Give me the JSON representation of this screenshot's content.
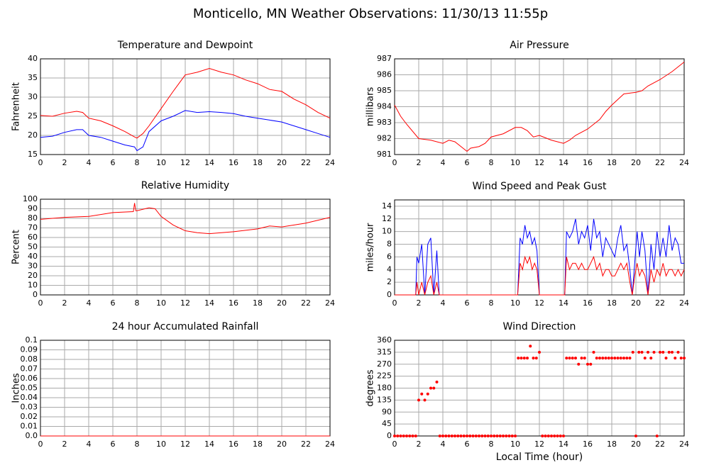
{
  "title": "Monticello, MN Weather Observations: 11/30/13 11:55p",
  "chart_data": [
    {
      "type": "line",
      "title": "Temperature and Dewpoint",
      "ylabel": "Fahrenheit",
      "grid": true,
      "xlim": [
        0,
        24
      ],
      "xticks": [
        0,
        2,
        4,
        6,
        8,
        10,
        12,
        14,
        16,
        18,
        20,
        22,
        24
      ],
      "ylim": [
        15,
        40
      ],
      "yticks": [
        15,
        20,
        25,
        30,
        35,
        40
      ],
      "x": [
        0,
        1,
        2,
        3,
        3.5,
        4,
        5,
        6,
        7,
        7.8,
        8,
        8.5,
        9,
        10,
        11,
        12,
        13,
        14,
        15,
        16,
        17,
        18,
        19,
        20,
        21,
        22,
        23,
        24
      ],
      "series": [
        {
          "color": "#ff0000",
          "values": [
            25.2,
            25,
            25.8,
            26.3,
            26,
            24.5,
            23.8,
            22.5,
            21,
            19.6,
            19.3,
            20.5,
            22.5,
            27,
            31.5,
            35.8,
            36.5,
            37.5,
            36.5,
            35.8,
            34.5,
            33.5,
            32,
            31.5,
            29.5,
            28,
            26,
            24.5
          ]
        },
        {
          "color": "#0000ff",
          "values": [
            19.5,
            19.8,
            20.8,
            21.5,
            21.5,
            20,
            19.5,
            18.5,
            17.5,
            17,
            16,
            17,
            21,
            23.8,
            25,
            26.5,
            26,
            26.2,
            26,
            25.7,
            25,
            24.5,
            24,
            23.5,
            22.5,
            21.5,
            20.5,
            19.5
          ]
        }
      ]
    },
    {
      "type": "line",
      "title": "Air Pressure",
      "ylabel": "millibars",
      "grid": true,
      "xlim": [
        0,
        24
      ],
      "xticks": [
        0,
        2,
        4,
        6,
        8,
        10,
        12,
        14,
        16,
        18,
        20,
        22,
        24
      ],
      "ylim": [
        981,
        987
      ],
      "yticks": [
        981,
        982,
        983,
        984,
        985,
        986,
        987
      ],
      "x": [
        0,
        0.5,
        1,
        2,
        3,
        4,
        4.5,
        5,
        6,
        6.3,
        7,
        7.5,
        8,
        9,
        10,
        10.5,
        11,
        11.5,
        12,
        13,
        14,
        14.5,
        15,
        16,
        17,
        17.5,
        18,
        19,
        20,
        20.5,
        21,
        22,
        23,
        24
      ],
      "series": [
        {
          "color": "#ff0000",
          "values": [
            984.1,
            983.4,
            982.9,
            982.0,
            981.9,
            981.7,
            981.9,
            981.8,
            981.2,
            981.4,
            981.5,
            981.7,
            982.1,
            982.3,
            982.7,
            982.7,
            982.5,
            982.1,
            982.2,
            981.9,
            981.7,
            981.9,
            982.2,
            982.6,
            983.2,
            983.7,
            984.1,
            984.8,
            984.9,
            985.0,
            985.3,
            985.7,
            986.2,
            986.8
          ]
        }
      ]
    },
    {
      "type": "line",
      "title": "Relative Humidity",
      "ylabel": "Percent",
      "grid": true,
      "xlim": [
        0,
        24
      ],
      "xticks": [
        0,
        2,
        4,
        6,
        8,
        10,
        12,
        14,
        16,
        18,
        20,
        22,
        24
      ],
      "ylim": [
        0,
        100
      ],
      "yticks": [
        0,
        10,
        20,
        30,
        40,
        50,
        60,
        70,
        80,
        90,
        100
      ],
      "x": [
        0,
        2,
        4,
        6,
        7.7,
        7.8,
        7.9,
        8,
        9,
        9.5,
        10,
        11,
        12,
        13,
        14,
        16,
        18,
        19,
        20,
        22,
        24
      ],
      "series": [
        {
          "color": "#ff0000",
          "values": [
            79,
            81,
            82,
            86,
            87,
            96,
            88,
            88,
            91,
            90,
            82,
            73,
            67,
            65,
            64,
            66,
            69,
            72,
            71,
            75,
            81
          ]
        }
      ]
    },
    {
      "type": "line",
      "title": "Wind Speed and Peak Gust",
      "ylabel": "miles/hour",
      "grid": true,
      "xlim": [
        0,
        24
      ],
      "xticks": [
        0,
        2,
        4,
        6,
        8,
        10,
        12,
        14,
        16,
        18,
        20,
        22,
        24
      ],
      "ylim": [
        0,
        15
      ],
      "yticks": [
        0,
        2,
        4,
        6,
        8,
        10,
        12,
        14
      ],
      "x": [
        0,
        1.75,
        1.85,
        2,
        2.25,
        2.5,
        2.75,
        3,
        3.25,
        3.5,
        3.7,
        3.75,
        10.2,
        10.4,
        10.6,
        10.8,
        11,
        11.2,
        11.4,
        11.6,
        11.8,
        12,
        12.1,
        14.1,
        14.25,
        14.5,
        14.75,
        15,
        15.25,
        15.5,
        15.75,
        16,
        16.25,
        16.5,
        16.75,
        17,
        17.25,
        17.5,
        17.75,
        18,
        18.25,
        18.5,
        18.75,
        19,
        19.25,
        19.5,
        19.7,
        19.9,
        20.1,
        20.3,
        20.5,
        20.75,
        21,
        21.25,
        21.5,
        21.75,
        22,
        22.25,
        22.5,
        22.75,
        23,
        23.25,
        23.5,
        23.75,
        24
      ],
      "series": [
        {
          "color": "#0000ff",
          "values": [
            0,
            0,
            6,
            5,
            8,
            0,
            8,
            9,
            0,
            7,
            0,
            0,
            0,
            9,
            8,
            11,
            9,
            10,
            8,
            9,
            7,
            0,
            0,
            0,
            10,
            9,
            10,
            12,
            8,
            10,
            9,
            11,
            7,
            12,
            9,
            10,
            6,
            9,
            8,
            7,
            6,
            9,
            11,
            7,
            8,
            4,
            0,
            5,
            10,
            6,
            10,
            7,
            0,
            8,
            4,
            10,
            6,
            9,
            6,
            11,
            7,
            9,
            8,
            5,
            5
          ]
        },
        {
          "color": "#ff0000",
          "values": [
            0,
            0,
            2,
            0,
            2,
            0,
            2,
            3,
            0,
            2,
            0,
            0,
            0,
            5,
            4,
            6,
            5,
            6,
            4,
            5,
            4,
            0,
            0,
            0,
            6,
            4,
            5,
            5,
            4,
            5,
            4,
            4,
            5,
            6,
            4,
            5,
            3,
            4,
            4,
            3,
            3,
            4,
            5,
            4,
            5,
            2,
            0,
            3,
            5,
            3,
            4,
            3,
            0,
            4,
            2,
            4,
            3,
            5,
            3,
            4,
            4,
            3,
            4,
            3,
            4
          ]
        }
      ]
    },
    {
      "type": "line",
      "title": "24 hour Accumulated Rainfall",
      "ylabel": "Inches",
      "grid": true,
      "xlim": [
        0,
        24
      ],
      "xticks": [
        0,
        2,
        4,
        6,
        8,
        10,
        12,
        14,
        16,
        18,
        20,
        22,
        24
      ],
      "ylim": [
        0,
        0.1
      ],
      "yticks": [
        {
          "value": 0,
          "label": "0.0"
        },
        0.01,
        0.02,
        0.03,
        0.04,
        0.05,
        0.06,
        0.07,
        0.08,
        0.09,
        0.1
      ],
      "x": [
        0,
        24
      ],
      "series": [
        {
          "color": "#ff0000",
          "values": [
            0,
            0
          ]
        }
      ]
    },
    {
      "type": "scatter",
      "title": "Wind Direction",
      "ylabel": "degrees",
      "xlabel": "Local Time (hour)",
      "grid": true,
      "color": "#ff0000",
      "xlim": [
        0,
        24
      ],
      "xticks": [
        0,
        2,
        4,
        6,
        8,
        10,
        12,
        14,
        16,
        18,
        20,
        22,
        24
      ],
      "ylim": [
        0,
        360
      ],
      "yticks": [
        0,
        45,
        90,
        135,
        180,
        225,
        270,
        315,
        360
      ],
      "x": [
        0,
        0.25,
        0.5,
        0.75,
        1,
        1.25,
        1.5,
        1.75,
        2,
        2.25,
        2.5,
        2.75,
        3,
        3.25,
        3.5,
        3.75,
        4,
        4.25,
        4.5,
        4.75,
        5,
        5.25,
        5.5,
        5.75,
        6,
        6.25,
        6.5,
        6.75,
        7,
        7.25,
        7.5,
        7.75,
        8,
        8.25,
        8.5,
        8.75,
        9,
        9.25,
        9.5,
        9.75,
        10,
        10.25,
        10.5,
        10.75,
        11,
        11.25,
        11.5,
        11.75,
        12,
        12.25,
        12.5,
        12.75,
        13,
        13.25,
        13.5,
        13.75,
        14,
        14.25,
        14.5,
        14.75,
        15,
        15.25,
        15.5,
        15.75,
        16,
        16.25,
        16.5,
        16.75,
        17,
        17.25,
        17.5,
        17.75,
        18,
        18.25,
        18.5,
        18.75,
        19,
        19.25,
        19.5,
        19.75,
        20,
        20.25,
        20.5,
        20.75,
        21,
        21.25,
        21.5,
        21.75,
        22,
        22.25,
        22.5,
        22.75,
        23,
        23.25,
        23.5,
        23.75,
        24
      ],
      "values": [
        0,
        0,
        0,
        0,
        0,
        0,
        0,
        0,
        135,
        158,
        135,
        158,
        180,
        180,
        203,
        0,
        0,
        0,
        0,
        0,
        0,
        0,
        0,
        0,
        0,
        0,
        0,
        0,
        0,
        0,
        0,
        0,
        0,
        0,
        0,
        0,
        0,
        0,
        0,
        0,
        0,
        293,
        293,
        293,
        293,
        338,
        293,
        293,
        315,
        0,
        0,
        0,
        0,
        0,
        0,
        0,
        0,
        293,
        293,
        293,
        293,
        270,
        293,
        293,
        270,
        270,
        315,
        293,
        293,
        293,
        293,
        293,
        293,
        293,
        293,
        293,
        293,
        293,
        293,
        315,
        0,
        315,
        315,
        293,
        315,
        293,
        315,
        0,
        315,
        315,
        293,
        315,
        315,
        293,
        315,
        293,
        293
      ]
    }
  ]
}
